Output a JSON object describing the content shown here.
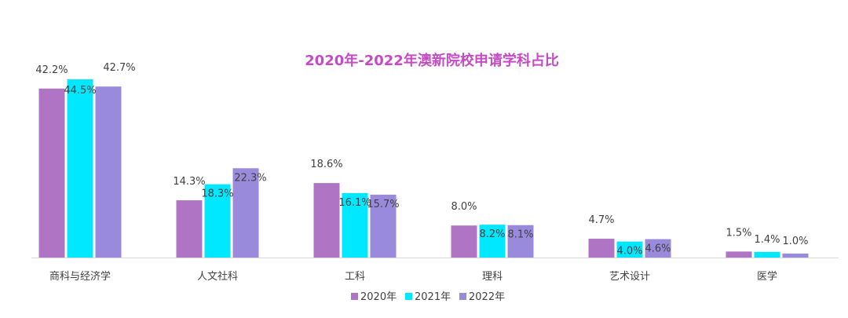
{
  "chart_data": {
    "type": "bar",
    "title": "2020年-2022年澳新院校申请学科占比",
    "categories": [
      "商科与经济学",
      "人文社科",
      "工科",
      "理科",
      "艺术设计",
      "医学"
    ],
    "series": [
      {
        "name": "2020年",
        "values": [
          42.2,
          14.3,
          18.6,
          8.0,
          4.7,
          1.5
        ],
        "labels": [
          "42.2%",
          "14.3%",
          "18.6%",
          "8.0%",
          "4.7%",
          "1.5%"
        ]
      },
      {
        "name": "2021年",
        "values": [
          44.5,
          18.3,
          16.1,
          8.2,
          4.0,
          1.4
        ],
        "labels": [
          "44.5%",
          "18.3%",
          "16.1%",
          "8.2%",
          "4.0%",
          "1.4%"
        ]
      },
      {
        "name": "2022年",
        "values": [
          42.7,
          22.3,
          15.7,
          8.1,
          4.6,
          1.0
        ],
        "labels": [
          "42.7%",
          "22.3%",
          "15.7%",
          "8.1%",
          "4.6%",
          "1.0%"
        ]
      }
    ],
    "ylim": [
      0,
      45
    ],
    "legend_position": "bottom",
    "grid": false
  },
  "colors": {
    "title": "#C44BC4",
    "series": [
      "#B074C4",
      "#00E8FF",
      "#9A8ADB"
    ],
    "axis": "#D9D9D9",
    "text": "#404040"
  }
}
